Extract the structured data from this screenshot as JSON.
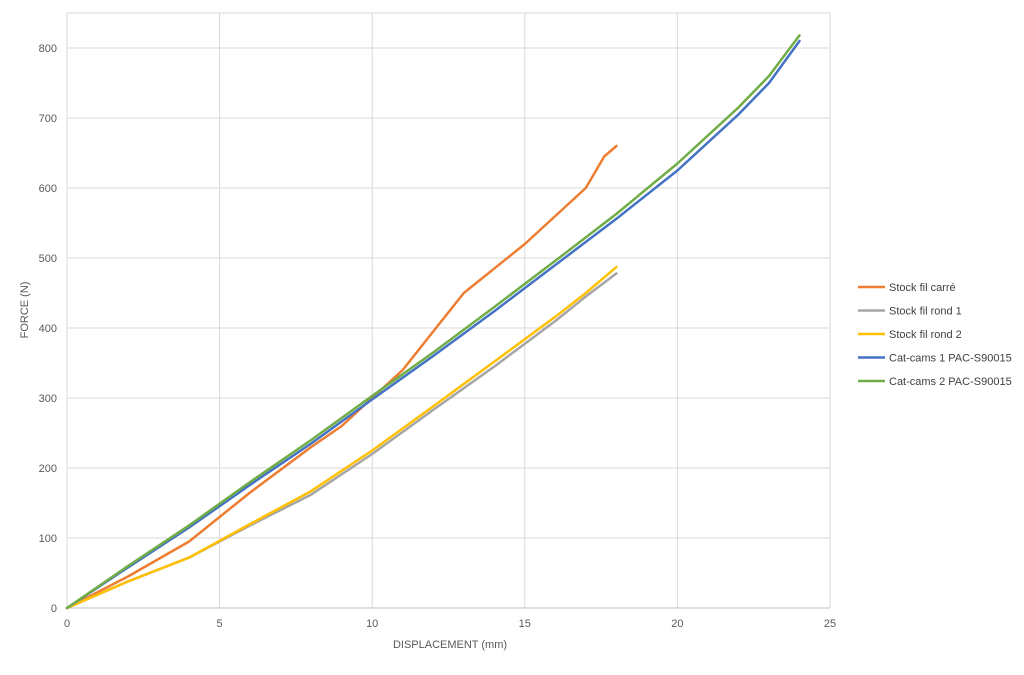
{
  "chart_data": {
    "type": "line",
    "title": "",
    "xlabel": "DISPLACEMENT (mm)",
    "ylabel": "FORCE (N)",
    "xlim": [
      0,
      25
    ],
    "ylim": [
      0,
      850
    ],
    "xticks": [
      "0",
      "5",
      "10",
      "15",
      "20",
      "25"
    ],
    "yticks": [
      "0",
      "100",
      "200",
      "300",
      "400",
      "500",
      "600",
      "700",
      "800"
    ],
    "xtick_values": [
      0,
      5,
      10,
      15,
      20,
      25
    ],
    "ytick_values": [
      0,
      100,
      200,
      300,
      400,
      500,
      600,
      700,
      800
    ],
    "grid": "vertical and horizontal",
    "legend_position": "right",
    "series": [
      {
        "name": "Stock fil carré",
        "color": "#ED7D31",
        "points": [
          [
            0,
            0
          ],
          [
            2,
            45
          ],
          [
            4,
            95
          ],
          [
            6,
            165
          ],
          [
            8,
            230
          ],
          [
            9,
            260
          ],
          [
            10,
            300
          ],
          [
            11,
            340
          ],
          [
            12,
            395
          ],
          [
            13,
            450
          ],
          [
            15,
            520
          ],
          [
            17,
            600
          ],
          [
            17.6,
            645
          ],
          [
            18,
            660
          ]
        ]
      },
      {
        "name": "Stock fil rond 1",
        "color": "#A5A5A5",
        "points": [
          [
            0,
            0
          ],
          [
            2,
            38
          ],
          [
            4,
            72
          ],
          [
            6,
            118
          ],
          [
            8,
            162
          ],
          [
            10,
            220
          ],
          [
            12,
            283
          ],
          [
            14,
            345
          ],
          [
            16,
            410
          ],
          [
            17,
            445
          ],
          [
            18,
            478
          ]
        ]
      },
      {
        "name": "Stock fil rond 2",
        "color": "#FFC000",
        "points": [
          [
            0,
            0
          ],
          [
            2,
            38
          ],
          [
            4,
            72
          ],
          [
            6,
            120
          ],
          [
            8,
            167
          ],
          [
            10,
            225
          ],
          [
            12,
            288
          ],
          [
            14,
            352
          ],
          [
            16,
            416
          ],
          [
            17,
            450
          ],
          [
            18,
            487
          ]
        ]
      },
      {
        "name": "Cat-cams 1 PAC-S90015",
        "color": "#4472C4",
        "points": [
          [
            0,
            0
          ],
          [
            2,
            58
          ],
          [
            4,
            115
          ],
          [
            6,
            176
          ],
          [
            8,
            235
          ],
          [
            10,
            298
          ],
          [
            12,
            360
          ],
          [
            14,
            424
          ],
          [
            16,
            490
          ],
          [
            18,
            556
          ],
          [
            20,
            625
          ],
          [
            22,
            705
          ],
          [
            23,
            750
          ],
          [
            24,
            810
          ]
        ]
      },
      {
        "name": "Cat-cams 2 PAC-S90015",
        "color": "#70AD47",
        "points": [
          [
            0,
            0
          ],
          [
            2,
            60
          ],
          [
            4,
            118
          ],
          [
            6,
            180
          ],
          [
            8,
            240
          ],
          [
            10,
            303
          ],
          [
            12,
            365
          ],
          [
            14,
            430
          ],
          [
            16,
            496
          ],
          [
            18,
            563
          ],
          [
            20,
            635
          ],
          [
            22,
            715
          ],
          [
            23,
            760
          ],
          [
            24,
            818
          ]
        ]
      }
    ]
  },
  "colors": {
    "grid": "#D9D9D9",
    "axis": "#BFBFBF",
    "text": "#595959"
  }
}
